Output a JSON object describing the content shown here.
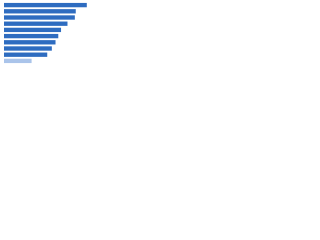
{
  "chart_data": {
    "type": "barh",
    "categories": [
      null,
      null,
      null,
      null,
      null,
      null,
      null,
      null,
      null,
      null
    ],
    "values": [
      90,
      78,
      77,
      69,
      62,
      59,
      56,
      52,
      47,
      30
    ],
    "colors": [
      "#2e6cc0",
      "#2e6cc0",
      "#2e6cc0",
      "#2e6cc0",
      "#2e6cc0",
      "#2e6cc0",
      "#2e6cc0",
      "#2e6cc0",
      "#2e6cc0",
      "#aac4ea"
    ],
    "xlim": [
      0,
      100
    ]
  }
}
